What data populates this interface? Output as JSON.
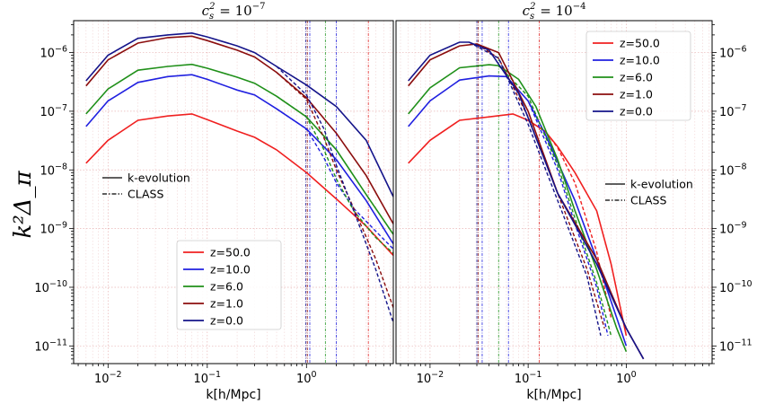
{
  "chart_data": {
    "type": "line",
    "xscale": "log",
    "yscale": "log",
    "ylabel": "k²Δ_π",
    "legend_line_styles": [
      {
        "label": "k-evolution",
        "style": "solid"
      },
      {
        "label": "CLASS",
        "style": "dashdot"
      }
    ],
    "panels": [
      {
        "title": "c_s² = 10⁻⁷",
        "title_base": "c",
        "title_sub": "s",
        "title_sup": "2",
        "title_eq": " = 10",
        "title_exp": "−7",
        "xlabel": "k[h/Mpc]",
        "xlim": [
          0.0045,
          7.5
        ],
        "ylim": [
          5e-12,
          3.5e-06
        ],
        "xticks": [
          {
            "v": 0.01,
            "b": "10",
            "e": "−2"
          },
          {
            "v": 0.1,
            "b": "10",
            "e": "−1"
          },
          {
            "v": 1,
            "b": "10",
            "e": "0"
          }
        ],
        "yticks": [
          {
            "v": 1e-11,
            "b": "10",
            "e": "−11"
          },
          {
            "v": 1e-10,
            "b": "10",
            "e": "−10"
          },
          {
            "v": 1e-09,
            "b": "10",
            "e": "−9"
          },
          {
            "v": 1e-08,
            "b": "10",
            "e": "−8"
          },
          {
            "v": 1e-07,
            "b": "10",
            "e": "−7"
          },
          {
            "v": 1e-06,
            "b": "10",
            "e": "−6"
          }
        ],
        "ytick_side": "left",
        "legend_location": "lower-center",
        "vlines": [
          {
            "x": 0.98,
            "color": "#1a1a99"
          },
          {
            "x": 1.02,
            "color": "#8b1a1a"
          },
          {
            "x": 1.08,
            "color": "#2a2ae0"
          },
          {
            "x": 1.55,
            "color": "#2a9a2a"
          },
          {
            "x": 2.0,
            "color": "#2a2ae0"
          },
          {
            "x": 4.2,
            "color": "#e02a2a"
          }
        ],
        "series": [
          {
            "name": "z=50.0",
            "color": "#f02020",
            "kevo": [
              [
                0.006,
                1.3e-08
              ],
              [
                0.01,
                3.2e-08
              ],
              [
                0.02,
                7e-08
              ],
              [
                0.04,
                8.3e-08
              ],
              [
                0.07,
                9e-08
              ],
              [
                0.1,
                7.2e-08
              ],
              [
                0.2,
                4.6e-08
              ],
              [
                0.3,
                3.6e-08
              ],
              [
                0.5,
                2.2e-08
              ],
              [
                1,
                9e-09
              ],
              [
                2,
                3.2e-09
              ],
              [
                4,
                1.1e-09
              ],
              [
                7.5,
                3.5e-10
              ]
            ]
          },
          {
            "name": "z=10.0",
            "color": "#2020e0",
            "kevo": [
              [
                0.006,
                5.5e-08
              ],
              [
                0.01,
                1.5e-07
              ],
              [
                0.02,
                3.1e-07
              ],
              [
                0.04,
                3.9e-07
              ],
              [
                0.07,
                4.2e-07
              ],
              [
                0.1,
                3.5e-07
              ],
              [
                0.2,
                2.3e-07
              ],
              [
                0.3,
                1.9e-07
              ],
              [
                0.5,
                1.1e-07
              ],
              [
                1,
                5e-08
              ],
              [
                2,
                1.5e-08
              ],
              [
                4,
                3e-09
              ],
              [
                7.5,
                5.5e-10
              ]
            ],
            "class": [
              [
                0.5,
                1.1e-07
              ],
              [
                1,
                5e-08
              ],
              [
                1.5,
                1.6e-08
              ],
              [
                2,
                6e-09
              ],
              [
                3,
                2.2e-09
              ],
              [
                5,
                9e-10
              ],
              [
                7.5,
                4.5e-10
              ]
            ]
          },
          {
            "name": "z=6.0",
            "color": "#20901a",
            "kevo": [
              [
                0.006,
                9e-08
              ],
              [
                0.01,
                2.4e-07
              ],
              [
                0.02,
                5e-07
              ],
              [
                0.04,
                5.8e-07
              ],
              [
                0.07,
                6.3e-07
              ],
              [
                0.1,
                5.4e-07
              ],
              [
                0.2,
                3.8e-07
              ],
              [
                0.3,
                3e-07
              ],
              [
                0.5,
                1.8e-07
              ],
              [
                1,
                8e-08
              ],
              [
                2,
                2.2e-08
              ],
              [
                4,
                3.8e-09
              ],
              [
                7.5,
                8e-10
              ]
            ],
            "class": [
              [
                0.5,
                1.8e-07
              ],
              [
                1,
                8e-08
              ],
              [
                1.5,
                2.2e-08
              ],
              [
                2,
                7e-09
              ],
              [
                3,
                2e-09
              ],
              [
                5,
                7e-10
              ],
              [
                7.5,
                3.8e-10
              ]
            ]
          },
          {
            "name": "z=1.0",
            "color": "#8b0e0e",
            "kevo": [
              [
                0.006,
                2.7e-07
              ],
              [
                0.01,
                7.5e-07
              ],
              [
                0.02,
                1.45e-06
              ],
              [
                0.04,
                1.8e-06
              ],
              [
                0.07,
                1.9e-06
              ],
              [
                0.1,
                1.6e-06
              ],
              [
                0.2,
                1.1e-06
              ],
              [
                0.3,
                8.4e-07
              ],
              [
                0.5,
                4.6e-07
              ],
              [
                1,
                1.7e-07
              ],
              [
                2,
                4.2e-08
              ],
              [
                4,
                8e-09
              ],
              [
                7.5,
                1.2e-09
              ]
            ],
            "class": [
              [
                0.5,
                4.6e-07
              ],
              [
                1,
                1.6e-07
              ],
              [
                1.5,
                3.5e-08
              ],
              [
                2,
                1e-08
              ],
              [
                3,
                2.2e-09
              ],
              [
                5,
                3e-10
              ],
              [
                7.5,
                4.5e-11
              ]
            ]
          },
          {
            "name": "z=0.0",
            "color": "#14148a",
            "kevo": [
              [
                0.006,
                3.3e-07
              ],
              [
                0.01,
                9e-07
              ],
              [
                0.02,
                1.75e-06
              ],
              [
                0.04,
                2e-06
              ],
              [
                0.07,
                2.15e-06
              ],
              [
                0.1,
                1.85e-06
              ],
              [
                0.2,
                1.3e-06
              ],
              [
                0.3,
                1e-06
              ],
              [
                0.5,
                5.8e-07
              ],
              [
                1,
                2.8e-07
              ],
              [
                2,
                1.2e-07
              ],
              [
                4,
                3.2e-08
              ],
              [
                7.5,
                3.5e-09
              ]
            ],
            "class": [
              [
                0.5,
                5.8e-07
              ],
              [
                1,
                1.9e-07
              ],
              [
                1.5,
                5e-08
              ],
              [
                2,
                1.2e-08
              ],
              [
                3,
                2e-09
              ],
              [
                5,
                2e-10
              ],
              [
                7.5,
                2.5e-11
              ]
            ]
          }
        ]
      },
      {
        "title": "c_s² = 10⁻⁴",
        "title_base": "c",
        "title_sub": "s",
        "title_sup": "2",
        "title_eq": " = 10",
        "title_exp": "−4",
        "xlabel": "k[h/Mpc]",
        "xlim": [
          0.0045,
          7.5
        ],
        "ylim": [
          5e-12,
          3.5e-06
        ],
        "xticks": [
          {
            "v": 0.01,
            "b": "10",
            "e": "−2"
          },
          {
            "v": 0.1,
            "b": "10",
            "e": "−1"
          },
          {
            "v": 1,
            "b": "10",
            "e": "0"
          }
        ],
        "yticks": [
          {
            "v": 1e-11,
            "b": "10",
            "e": "−11"
          },
          {
            "v": 1e-10,
            "b": "10",
            "e": "−10"
          },
          {
            "v": 1e-09,
            "b": "10",
            "e": "−9"
          },
          {
            "v": 1e-08,
            "b": "10",
            "e": "−8"
          },
          {
            "v": 1e-07,
            "b": "10",
            "e": "−7"
          },
          {
            "v": 1e-06,
            "b": "10",
            "e": "−6"
          }
        ],
        "ytick_side": "right",
        "legend_location": "top-right",
        "vlines": [
          {
            "x": 0.03,
            "color": "#1a1a99"
          },
          {
            "x": 0.031,
            "color": "#8b1a1a"
          },
          {
            "x": 0.034,
            "color": "#2a2ae0"
          },
          {
            "x": 0.05,
            "color": "#2a9a2a"
          },
          {
            "x": 0.063,
            "color": "#2a2ae0"
          },
          {
            "x": 0.13,
            "color": "#e02a2a"
          }
        ],
        "series": [
          {
            "name": "z=50.0",
            "color": "#f02020",
            "kevo": [
              [
                0.006,
                1.3e-08
              ],
              [
                0.01,
                3.2e-08
              ],
              [
                0.02,
                7e-08
              ],
              [
                0.04,
                8e-08
              ],
              [
                0.07,
                9e-08
              ],
              [
                0.1,
                7e-08
              ],
              [
                0.15,
                4.5e-08
              ],
              [
                0.2,
                2.5e-08
              ],
              [
                0.3,
                9e-09
              ],
              [
                0.5,
                2e-09
              ],
              [
                0.7,
                2.5e-10
              ],
              [
                1,
                1.5e-11
              ]
            ],
            "class": [
              [
                0.1,
                7e-08
              ],
              [
                0.15,
                4.5e-08
              ],
              [
                0.2,
                2.4e-08
              ],
              [
                0.3,
                6e-09
              ],
              [
                0.5,
                4e-10
              ],
              [
                0.7,
                3e-11
              ]
            ]
          },
          {
            "name": "z=10.0",
            "color": "#2020e0",
            "kevo": [
              [
                0.006,
                5.5e-08
              ],
              [
                0.01,
                1.5e-07
              ],
              [
                0.02,
                3.4e-07
              ],
              [
                0.04,
                4e-07
              ],
              [
                0.06,
                3.9e-07
              ],
              [
                0.1,
                1.5e-07
              ],
              [
                0.15,
                4e-08
              ],
              [
                0.3,
                3e-09
              ],
              [
                0.5,
                3e-10
              ],
              [
                0.8,
                3e-11
              ],
              [
                1,
                1e-11
              ]
            ],
            "class": [
              [
                0.06,
                3.9e-07
              ],
              [
                0.1,
                1.5e-07
              ],
              [
                0.2,
                1e-08
              ],
              [
                0.3,
                1.2e-09
              ],
              [
                0.5,
                1e-10
              ],
              [
                0.65,
                1.5e-11
              ]
            ]
          },
          {
            "name": "z=6.0",
            "color": "#20901a",
            "kevo": [
              [
                0.006,
                9e-08
              ],
              [
                0.01,
                2.5e-07
              ],
              [
                0.02,
                5.5e-07
              ],
              [
                0.04,
                6.2e-07
              ],
              [
                0.05,
                6e-07
              ],
              [
                0.08,
                3.5e-07
              ],
              [
                0.12,
                1.2e-07
              ],
              [
                0.2,
                1.5e-08
              ],
              [
                0.3,
                2e-09
              ],
              [
                0.5,
                2e-10
              ],
              [
                0.8,
                2e-11
              ],
              [
                1,
                8e-12
              ]
            ],
            "class": [
              [
                0.05,
                6e-07
              ],
              [
                0.1,
                1.8e-07
              ],
              [
                0.2,
                1.2e-08
              ],
              [
                0.3,
                1.5e-09
              ],
              [
                0.5,
                1.2e-10
              ],
              [
                0.7,
                1.5e-11
              ]
            ]
          },
          {
            "name": "z=1.0",
            "color": "#8b0e0e",
            "kevo": [
              [
                0.006,
                2.7e-07
              ],
              [
                0.01,
                7.5e-07
              ],
              [
                0.02,
                1.3e-06
              ],
              [
                0.03,
                1.4e-06
              ],
              [
                0.05,
                1e-06
              ],
              [
                0.1,
                1e-07
              ],
              [
                0.2,
                4e-09
              ],
              [
                0.5,
                3e-10
              ],
              [
                1,
                2e-11
              ],
              [
                1.5,
                6e-12
              ]
            ],
            "class": [
              [
                0.03,
                1.4e-06
              ],
              [
                0.05,
                8e-07
              ],
              [
                0.1,
                8e-08
              ],
              [
                0.2,
                4e-09
              ],
              [
                0.4,
                2e-10
              ],
              [
                0.6,
                2e-11
              ]
            ]
          },
          {
            "name": "z=0.0",
            "color": "#14148a",
            "kevo": [
              [
                0.006,
                3.3e-07
              ],
              [
                0.01,
                9e-07
              ],
              [
                0.02,
                1.5e-06
              ],
              [
                0.025,
                1.5e-06
              ],
              [
                0.04,
                1.1e-06
              ],
              [
                0.08,
                2e-07
              ],
              [
                0.2,
                4e-09
              ],
              [
                0.5,
                2.5e-10
              ],
              [
                1,
                2e-11
              ],
              [
                1.5,
                6e-12
              ]
            ],
            "class": [
              [
                0.025,
                1.5e-06
              ],
              [
                0.05,
                8e-07
              ],
              [
                0.1,
                6e-08
              ],
              [
                0.2,
                3e-09
              ],
              [
                0.4,
                1.5e-10
              ],
              [
                0.55,
                1.5e-11
              ]
            ]
          }
        ]
      }
    ]
  }
}
